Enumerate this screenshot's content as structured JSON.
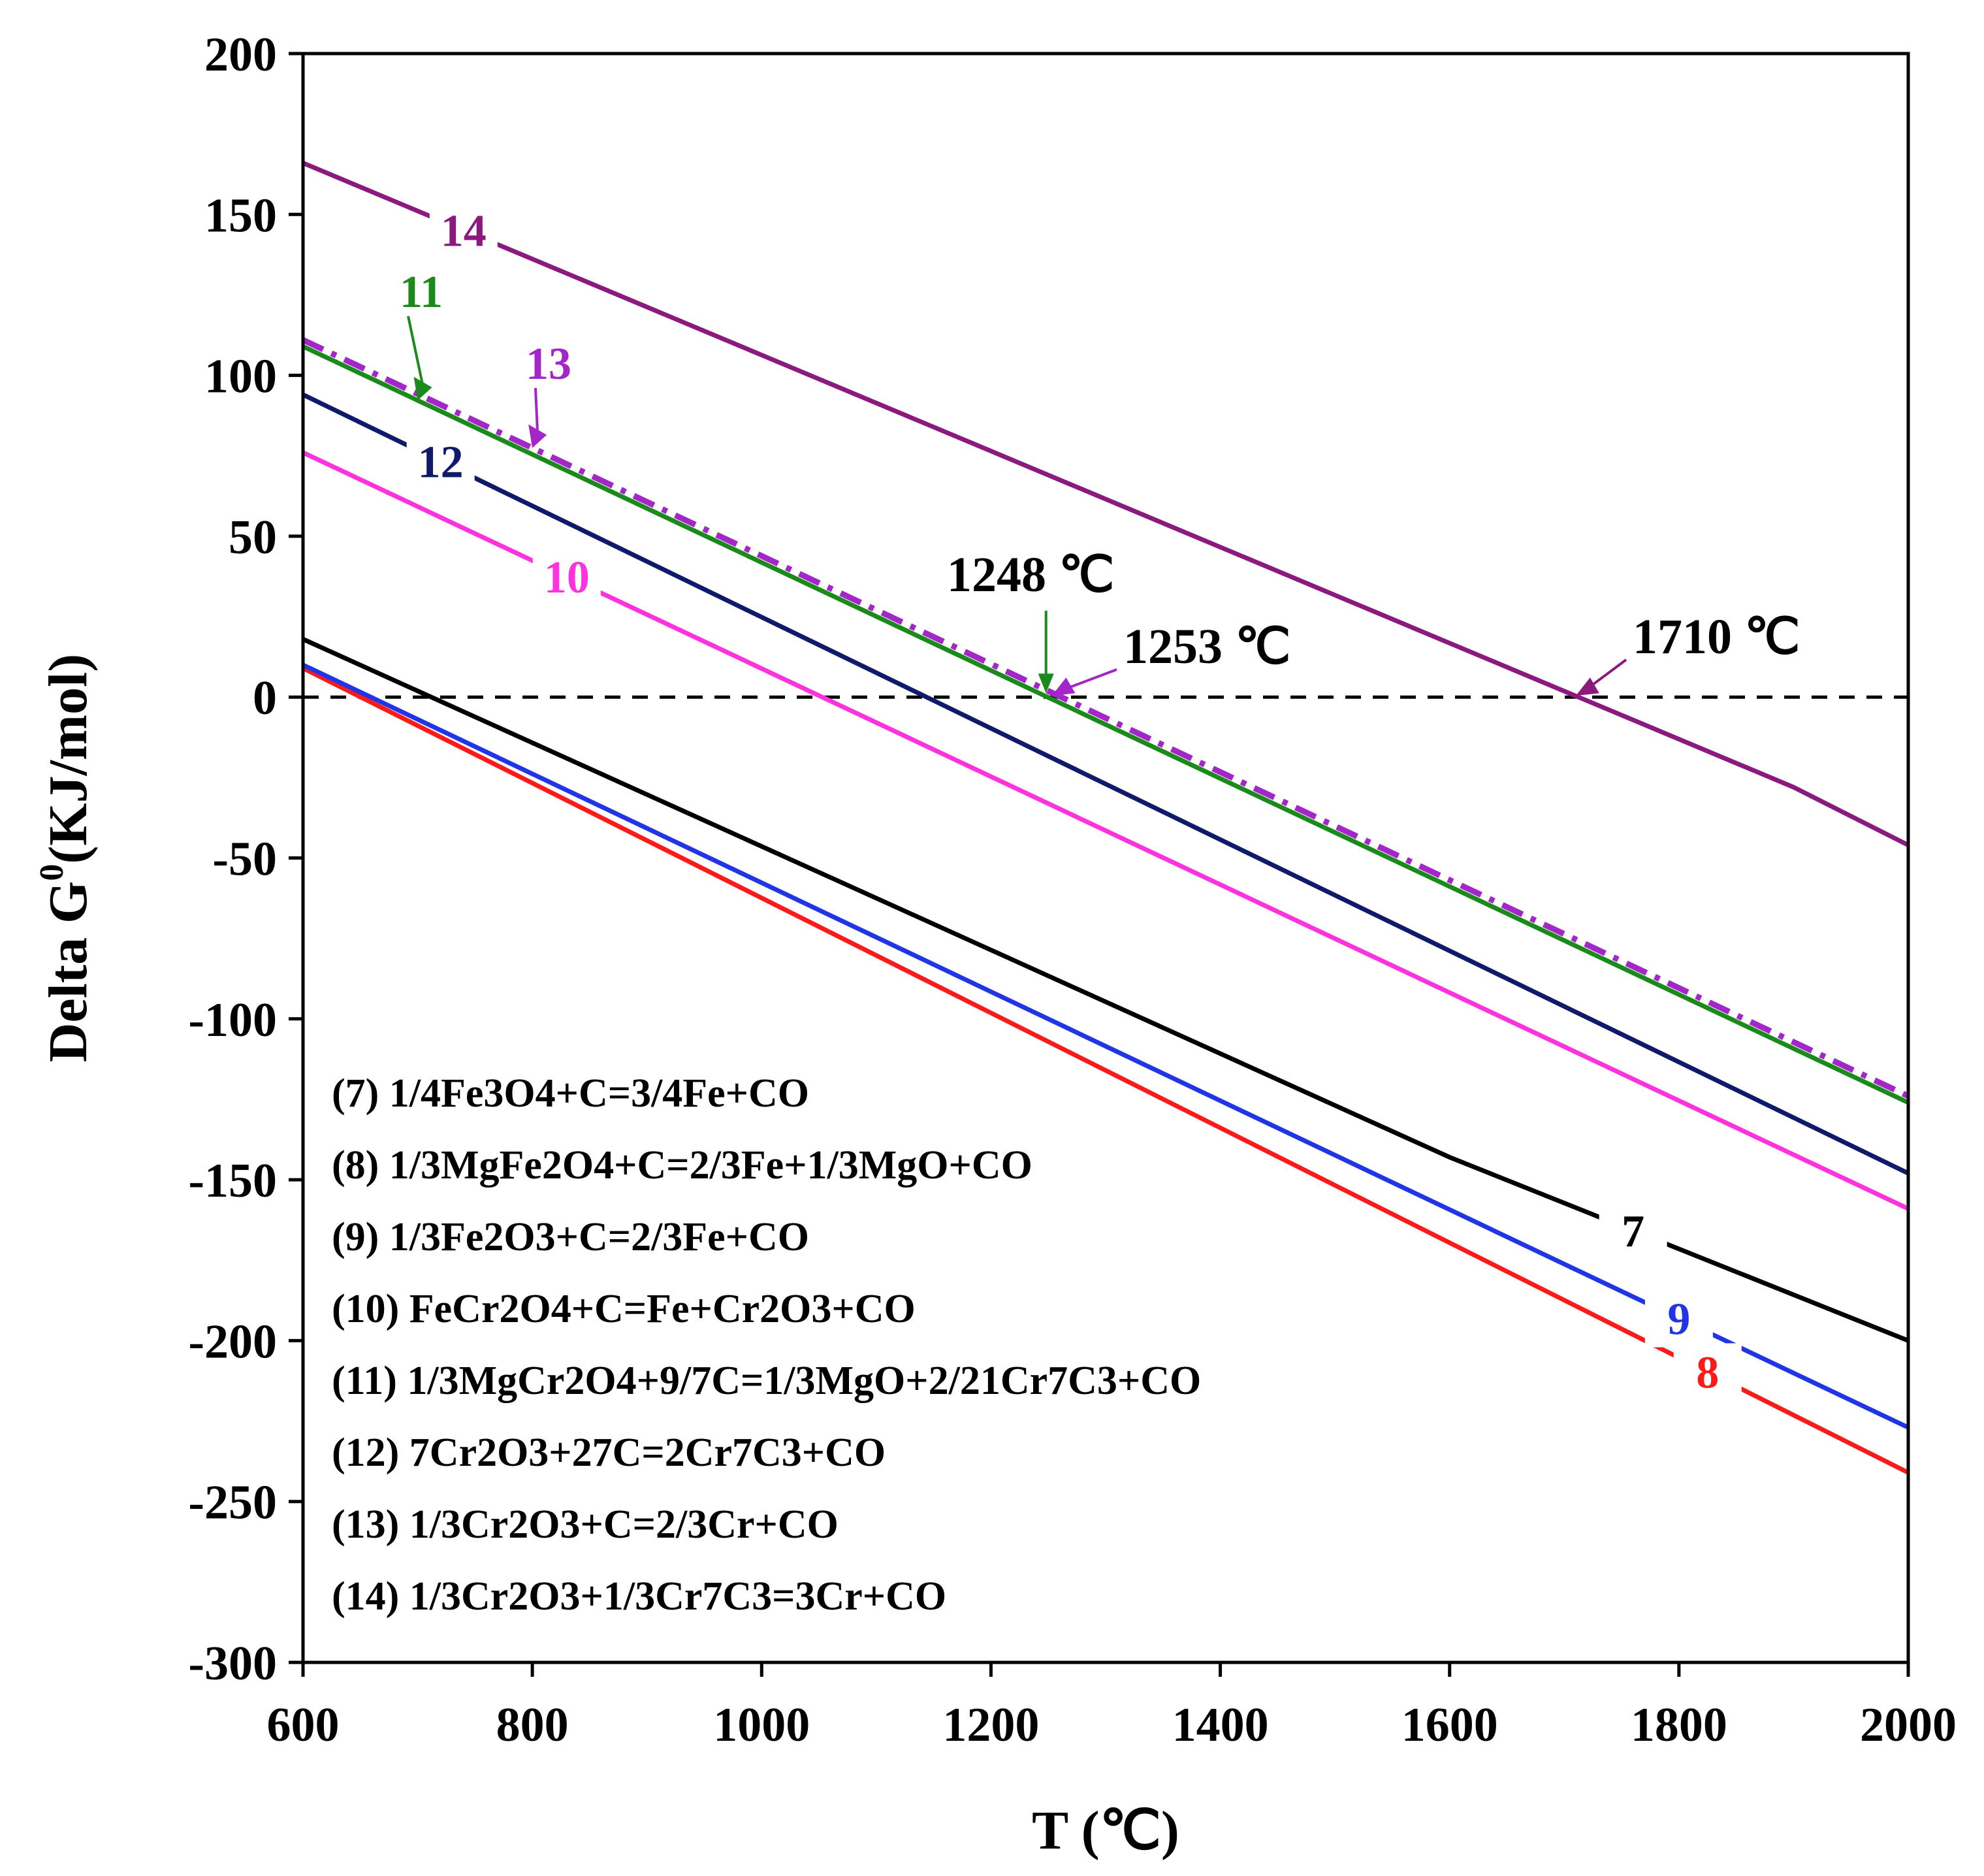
{
  "chart_data": {
    "type": "line",
    "xlabel": "T (℃)",
    "ylabel": "Delta G",
    "ylabel_sup": "0",
    "ylabel_unit": "(KJ/mol)",
    "xlim": [
      600,
      2000
    ],
    "ylim": [
      -300,
      200
    ],
    "xticks": [
      600,
      800,
      1000,
      1200,
      1400,
      1600,
      1800,
      2000
    ],
    "yticks": [
      -300,
      -250,
      -200,
      -150,
      -100,
      -50,
      0,
      50,
      100,
      150,
      200
    ],
    "reference_line": {
      "y": 0,
      "style": "dashed"
    },
    "series": [
      {
        "id": "7",
        "color": "#000000",
        "x": [
          600,
          1600,
          2000
        ],
        "y": [
          18,
          -143,
          -200
        ]
      },
      {
        "id": "8",
        "color": "#ff1a1a",
        "x": [
          600,
          2000
        ],
        "y": [
          9,
          -241
        ]
      },
      {
        "id": "9",
        "color": "#1f35e6",
        "x": [
          600,
          2000
        ],
        "y": [
          10,
          -227
        ]
      },
      {
        "id": "10",
        "color": "#ff33dd",
        "x": [
          600,
          2000
        ],
        "y": [
          76,
          -159
        ]
      },
      {
        "id": "11",
        "color": "#1a8a1a",
        "x": [
          600,
          2000
        ],
        "y": [
          109,
          -126
        ]
      },
      {
        "id": "12",
        "color": "#101a6b",
        "x": [
          600,
          2000
        ],
        "y": [
          94,
          -148
        ]
      },
      {
        "id": "13",
        "color": "#a326c9",
        "x": [
          600,
          2000
        ],
        "y": [
          111,
          -124
        ],
        "dash": true
      },
      {
        "id": "14",
        "color": "#8a1a7e",
        "x": [
          600,
          1900,
          2000
        ],
        "y": [
          166,
          -28,
          -46
        ]
      }
    ],
    "series_labels": [
      {
        "text": "14",
        "color": "#8a1a7e"
      },
      {
        "text": "11",
        "color": "#1a8a1a"
      },
      {
        "text": "13",
        "color": "#a326c9"
      },
      {
        "text": "12",
        "color": "#101a6b"
      },
      {
        "text": "10",
        "color": "#ff33dd"
      },
      {
        "text": "7",
        "color": "#000000"
      },
      {
        "text": "9",
        "color": "#1f35e6"
      },
      {
        "text": "8",
        "color": "#ff1a1a"
      }
    ],
    "annotations": [
      {
        "text": "1248 ℃",
        "x": 1248,
        "y": 0
      },
      {
        "text": "1253 ℃",
        "x": 1253,
        "y": 0
      },
      {
        "text": "1710 ℃",
        "x": 1710,
        "y": 0
      }
    ],
    "legend": [
      "(7) 1/4Fe3O4+C=3/4Fe+CO",
      "(8) 1/3MgFe2O4+C=2/3Fe+1/3MgO+CO",
      "(9) 1/3Fe2O3+C=2/3Fe+CO",
      "(10) FeCr2O4+C=Fe+Cr2O3+CO",
      "(11) 1/3MgCr2O4+9/7C=1/3MgO+2/21Cr7C3+CO",
      "(12) 7Cr2O3+27C=2Cr7C3+CO",
      "(13) 1/3Cr2O3+C=2/3Cr+CO",
      "(14) 1/3Cr2O3+1/3Cr7C3=3Cr+CO"
    ],
    "legend_position": "bottom-left"
  }
}
